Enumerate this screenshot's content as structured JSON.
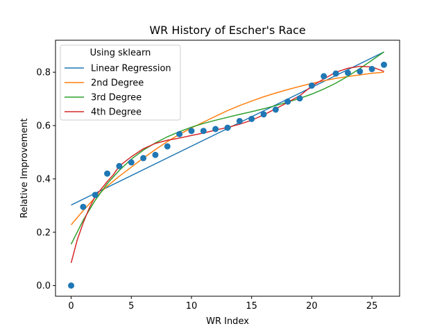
{
  "chart_data": {
    "type": "scatter",
    "title": "WR History of Escher's Race",
    "xlabel": "WR Index",
    "ylabel": "Relative Improvement",
    "xlim": [
      -1.3,
      27.3
    ],
    "ylim": [
      -0.04,
      0.92
    ],
    "xticks": [
      0,
      5,
      10,
      15,
      20,
      25
    ],
    "yticks": [
      0.0,
      0.2,
      0.4,
      0.6,
      0.8
    ],
    "ytick_labels": [
      "0.0",
      "0.2",
      "0.4",
      "0.6",
      "0.8"
    ],
    "grid": false,
    "legend": {
      "title": "Using sklearn",
      "position": "upper-left"
    },
    "points": {
      "color": "#1f77b4",
      "x": [
        0,
        1,
        2,
        3,
        4,
        5,
        6,
        7,
        8,
        9,
        10,
        11,
        12,
        13,
        14,
        15,
        16,
        17,
        18,
        19,
        20,
        21,
        22,
        23,
        24,
        25,
        26
      ],
      "y": [
        0.0,
        0.295,
        0.34,
        0.42,
        0.448,
        0.462,
        0.478,
        0.49,
        0.522,
        0.568,
        0.58,
        0.58,
        0.587,
        0.592,
        0.617,
        0.625,
        0.642,
        0.66,
        0.69,
        0.702,
        0.75,
        0.785,
        0.795,
        0.798,
        0.803,
        0.812,
        0.828
      ]
    },
    "series": [
      {
        "name": "Linear Regression",
        "color": "#1f77b4",
        "x": [
          0,
          26
        ],
        "y": [
          0.302,
          0.876
        ]
      },
      {
        "name": "2nd Degree",
        "color": "#ff7f0e",
        "x": [
          0,
          1,
          2,
          3,
          4,
          5,
          6,
          7,
          8,
          9,
          10,
          11,
          12,
          13,
          14,
          15,
          16,
          17,
          18,
          19,
          20,
          21,
          22,
          23,
          24,
          25,
          26
        ],
        "y": [
          0.228,
          0.281,
          0.33,
          0.373,
          0.41,
          0.444,
          0.478,
          0.51,
          0.54,
          0.567,
          0.591,
          0.613,
          0.635,
          0.656,
          0.675,
          0.692,
          0.708,
          0.722,
          0.735,
          0.747,
          0.758,
          0.768,
          0.777,
          0.784,
          0.79,
          0.796,
          0.8
        ]
      },
      {
        "name": "3rd Degree",
        "color": "#2ca02c",
        "x": [
          0,
          1,
          2,
          3,
          4,
          5,
          6,
          7,
          8,
          9,
          10,
          11,
          12,
          13,
          14,
          15,
          16,
          17,
          18,
          19,
          20,
          21,
          22,
          23,
          24,
          25,
          26
        ],
        "y": [
          0.155,
          0.245,
          0.32,
          0.382,
          0.432,
          0.474,
          0.508,
          0.535,
          0.558,
          0.577,
          0.594,
          0.608,
          0.62,
          0.631,
          0.642,
          0.652,
          0.663,
          0.675,
          0.688,
          0.702,
          0.718,
          0.737,
          0.759,
          0.785,
          0.814,
          0.845,
          0.876
        ]
      },
      {
        "name": "4th Degree",
        "color": "#d62728",
        "x": [
          0,
          0.5,
          1,
          1.5,
          2,
          2.5,
          3,
          3.5,
          4,
          5,
          6,
          7,
          8,
          9,
          10,
          11,
          12,
          13,
          14,
          15,
          16,
          17,
          18,
          19,
          20,
          21,
          22,
          23,
          24,
          25,
          26
        ],
        "y": [
          0.085,
          0.17,
          0.235,
          0.29,
          0.335,
          0.362,
          0.39,
          0.415,
          0.448,
          0.483,
          0.513,
          0.533,
          0.545,
          0.553,
          0.563,
          0.572,
          0.583,
          0.593,
          0.605,
          0.62,
          0.64,
          0.663,
          0.687,
          0.712,
          0.748,
          0.775,
          0.8,
          0.815,
          0.822,
          0.82,
          0.803
        ]
      }
    ]
  }
}
